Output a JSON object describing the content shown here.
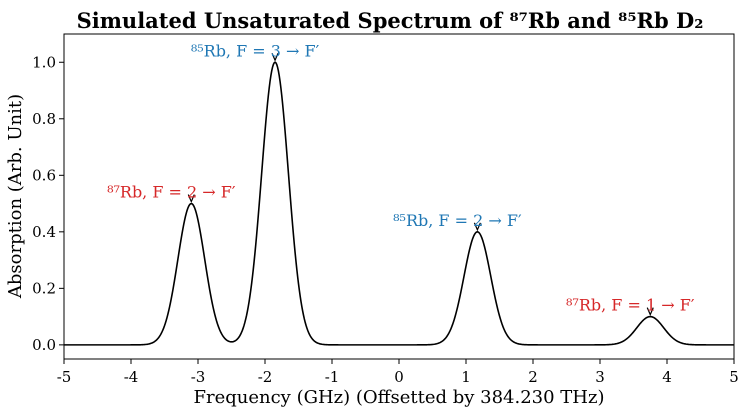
{
  "chart_data": {
    "type": "line",
    "title": "Simulated Unsaturated Spectrum of ⁸⁷Rb and ⁸⁵Rb D₂",
    "xlabel": "Frequency (GHz) (Offsetted by 384.230 THz)",
    "ylabel": "Absorption (Arb. Unit)",
    "xlim": [
      -5,
      5
    ],
    "ylim": [
      -0.05,
      1.1
    ],
    "xticks": [
      -5,
      -4,
      -3,
      -2,
      -1,
      0,
      1,
      2,
      3,
      4,
      5
    ],
    "xtick_labels": [
      "-5",
      "-4",
      "-3",
      "-2",
      "-1",
      "0",
      "1",
      "2",
      "3",
      "4",
      "5"
    ],
    "yticks": [
      0.0,
      0.2,
      0.4,
      0.6,
      0.8,
      1.0
    ],
    "ytick_labels": [
      "0.0",
      "0.2",
      "0.4",
      "0.6",
      "0.8",
      "1.0"
    ],
    "grid": false,
    "line_color": "#000000",
    "peak_width_sigma_ghz": 0.2,
    "peaks": [
      {
        "x": -3.1,
        "y": 0.5,
        "label": "⁸⁷Rb,  F = 2 → F′",
        "color": "#d62728"
      },
      {
        "x": -1.85,
        "y": 1.0,
        "label": "⁸⁵Rb,  F = 3 → F′",
        "color": "#1f77b4"
      },
      {
        "x": 1.17,
        "y": 0.4,
        "label": "⁸⁵Rb,  F = 2 → F′",
        "color": "#1f77b4"
      },
      {
        "x": 3.75,
        "y": 0.1,
        "label": "⁸⁷Rb,  F = 1 → F′",
        "color": "#d62728"
      }
    ]
  }
}
